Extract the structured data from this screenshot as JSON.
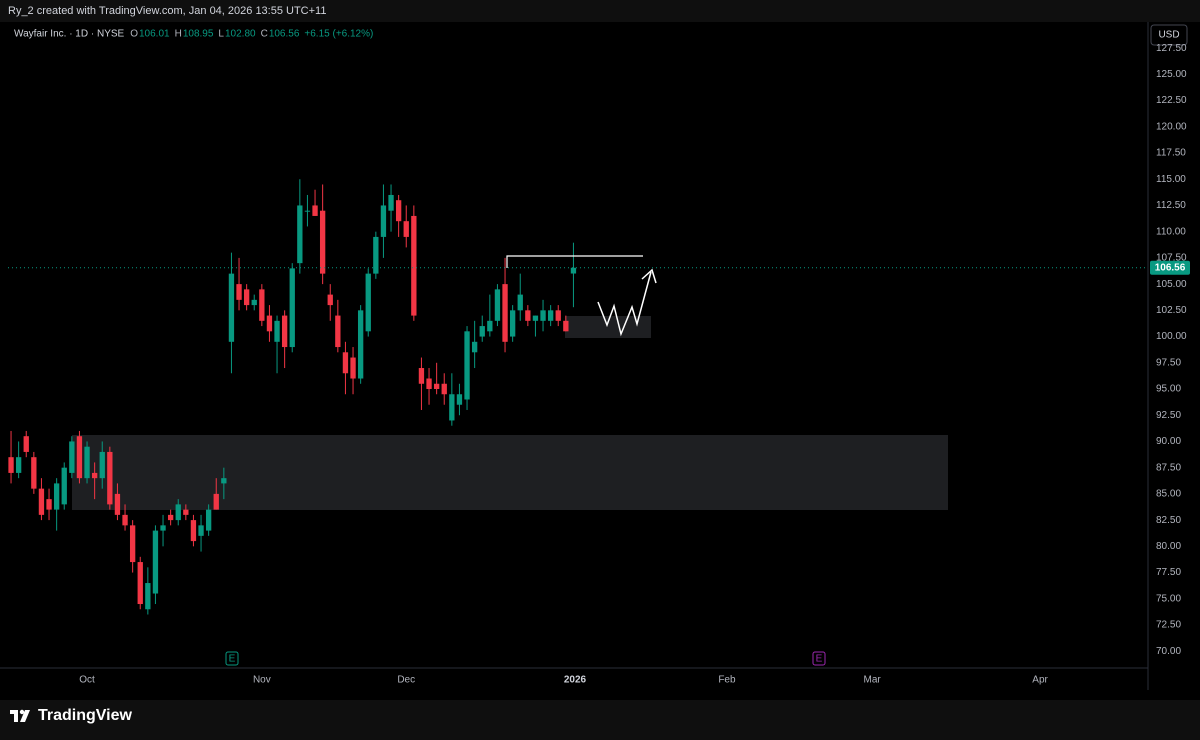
{
  "header": {
    "caption": "Ry_2 created with TradingView.com, Jan 04, 2026 13:55 UTC+11"
  },
  "chart_data": {
    "type": "candlestick",
    "title": "Wayfair Inc. · 1D · NYSE",
    "legend": [
      {
        "label": "O",
        "value": "106.01"
      },
      {
        "label": "H",
        "value": "108.95"
      },
      {
        "label": "L",
        "value": "102.80"
      },
      {
        "label": "C",
        "value": "106.56"
      }
    ],
    "change": "+6.15 (+6.12%)",
    "currency": "USD",
    "up_color": "#089981",
    "down_color": "#f23645",
    "open": [
      88.5,
      87,
      90.5,
      88.5,
      85.5,
      84.5,
      83.5,
      84,
      87,
      90.5,
      86.5,
      87,
      86.5,
      89,
      85,
      83,
      82,
      78.5,
      74,
      75.5,
      81.5,
      83,
      82.5,
      83.5,
      82.5,
      81,
      81.5,
      85,
      86,
      99.5,
      105,
      104.5,
      103,
      104.5,
      102,
      99.5,
      102,
      99,
      107,
      112,
      112.5,
      112,
      104,
      102,
      98.5,
      98,
      96,
      100.5,
      106,
      109.5,
      112,
      113,
      111,
      111.5,
      97,
      96,
      95.5,
      95.5,
      92,
      93.5,
      94,
      98.5,
      100,
      100.5,
      101.5,
      105,
      100,
      102.5,
      102.5,
      101.5,
      101.5,
      101.5,
      102.5,
      101.5,
      106.01
    ],
    "high": [
      91,
      90,
      91,
      89,
      86.5,
      85.5,
      86.5,
      88,
      90.5,
      91,
      90,
      88,
      90,
      89.5,
      86,
      84,
      82.5,
      79,
      78,
      82,
      83,
      83.5,
      84.5,
      84,
      83,
      83,
      84,
      86.5,
      87.5,
      108,
      107.5,
      105,
      104,
      105,
      103,
      102,
      102.5,
      107,
      115,
      113.5,
      114,
      114.5,
      105,
      103.5,
      99.5,
      99,
      103,
      106.5,
      110,
      114.5,
      114.5,
      113.5,
      112.5,
      112.5,
      98,
      97,
      97.5,
      96.5,
      96.5,
      95.5,
      101,
      101.5,
      102,
      104,
      105,
      107.5,
      103,
      106,
      103,
      102,
      103.5,
      103,
      103,
      102,
      108.95
    ],
    "low": [
      86,
      86.5,
      88.5,
      85,
      82.5,
      82.5,
      81.5,
      83.5,
      86.5,
      86,
      86,
      84.5,
      85.5,
      83.5,
      82.5,
      81.5,
      77.5,
      74,
      73.5,
      74.5,
      80,
      82,
      82,
      82.5,
      80,
      79.5,
      81,
      83.5,
      84.5,
      96.5,
      102.5,
      102.5,
      102.5,
      101,
      99.5,
      96.5,
      97,
      98.5,
      106,
      110.5,
      111.5,
      105,
      101.5,
      98.5,
      94.5,
      94.5,
      95.5,
      100,
      105.5,
      107.5,
      110,
      109.5,
      108.5,
      101.5,
      93,
      93.5,
      94.5,
      93.5,
      91.5,
      92.5,
      93,
      97,
      99.5,
      100,
      101,
      98.5,
      99.5,
      101.5,
      101,
      100,
      100.5,
      101,
      101,
      100.5,
      102.8
    ],
    "close": [
      87,
      88.5,
      89,
      85.5,
      83,
      83.5,
      86,
      87.5,
      90,
      86.5,
      89.5,
      86.5,
      89,
      84,
      83,
      82,
      78.5,
      74.5,
      76.5,
      81.5,
      82,
      82.5,
      84,
      83,
      80.5,
      82,
      83.5,
      83.5,
      86.5,
      106,
      103.5,
      103,
      103.5,
      101.5,
      100.5,
      101.5,
      99,
      106.5,
      112.5,
      112,
      111.5,
      106,
      103,
      99,
      96.5,
      96,
      102.5,
      106,
      109.5,
      112.5,
      113.5,
      111,
      109.5,
      102,
      95.5,
      95,
      95,
      94.5,
      94.5,
      94.5,
      100.5,
      99.5,
      101,
      101.5,
      104.5,
      99.5,
      102.5,
      104,
      101.5,
      102,
      102.5,
      102.5,
      101.5,
      100.5,
      106.56
    ],
    "last_price": 106.56,
    "xlim": [
      -0.4,
      149.6
    ],
    "xticks": [
      {
        "value": 10,
        "label": "Oct"
      },
      {
        "value": 33,
        "label": "Nov"
      },
      {
        "value": 52,
        "label": "Dec"
      },
      {
        "value": 74.2,
        "label": "2026"
      },
      {
        "value": 94.2,
        "label": "Feb"
      },
      {
        "value": 113.3,
        "label": "Mar"
      },
      {
        "value": 135.4,
        "label": "Apr"
      }
    ],
    "ylim": [
      68.4,
      129.8
    ],
    "yticks": [
      {
        "value": 70,
        "label": "70.00"
      },
      {
        "value": 72.5,
        "label": "72.50"
      },
      {
        "value": 75,
        "label": "75.00"
      },
      {
        "value": 77.5,
        "label": "77.50"
      },
      {
        "value": 80,
        "label": "80.00"
      },
      {
        "value": 82.5,
        "label": "82.50"
      },
      {
        "value": 85,
        "label": "85.00"
      },
      {
        "value": 87.5,
        "label": "87.50"
      },
      {
        "value": 90,
        "label": "90.00"
      },
      {
        "value": 92.5,
        "label": "92.50"
      },
      {
        "value": 95,
        "label": "95.00"
      },
      {
        "value": 97.5,
        "label": "97.50"
      },
      {
        "value": 100,
        "label": "100.00"
      },
      {
        "value": 102.5,
        "label": "102.50"
      },
      {
        "value": 105,
        "label": "105.00"
      },
      {
        "value": 107.5,
        "label": "107.50"
      },
      {
        "value": 110,
        "label": "110.00"
      },
      {
        "value": 112.5,
        "label": "112.50"
      },
      {
        "value": 115,
        "label": "115.00"
      },
      {
        "value": 117.5,
        "label": "117.50"
      },
      {
        "value": 120,
        "label": "120.00"
      },
      {
        "value": 122.5,
        "label": "122.50"
      },
      {
        "value": 125,
        "label": "125.00"
      },
      {
        "value": 127.5,
        "label": "127.50"
      }
    ],
    "grid": false,
    "events": [
      "E",
      "E"
    ]
  },
  "footer": {
    "brand": "TradingView"
  }
}
